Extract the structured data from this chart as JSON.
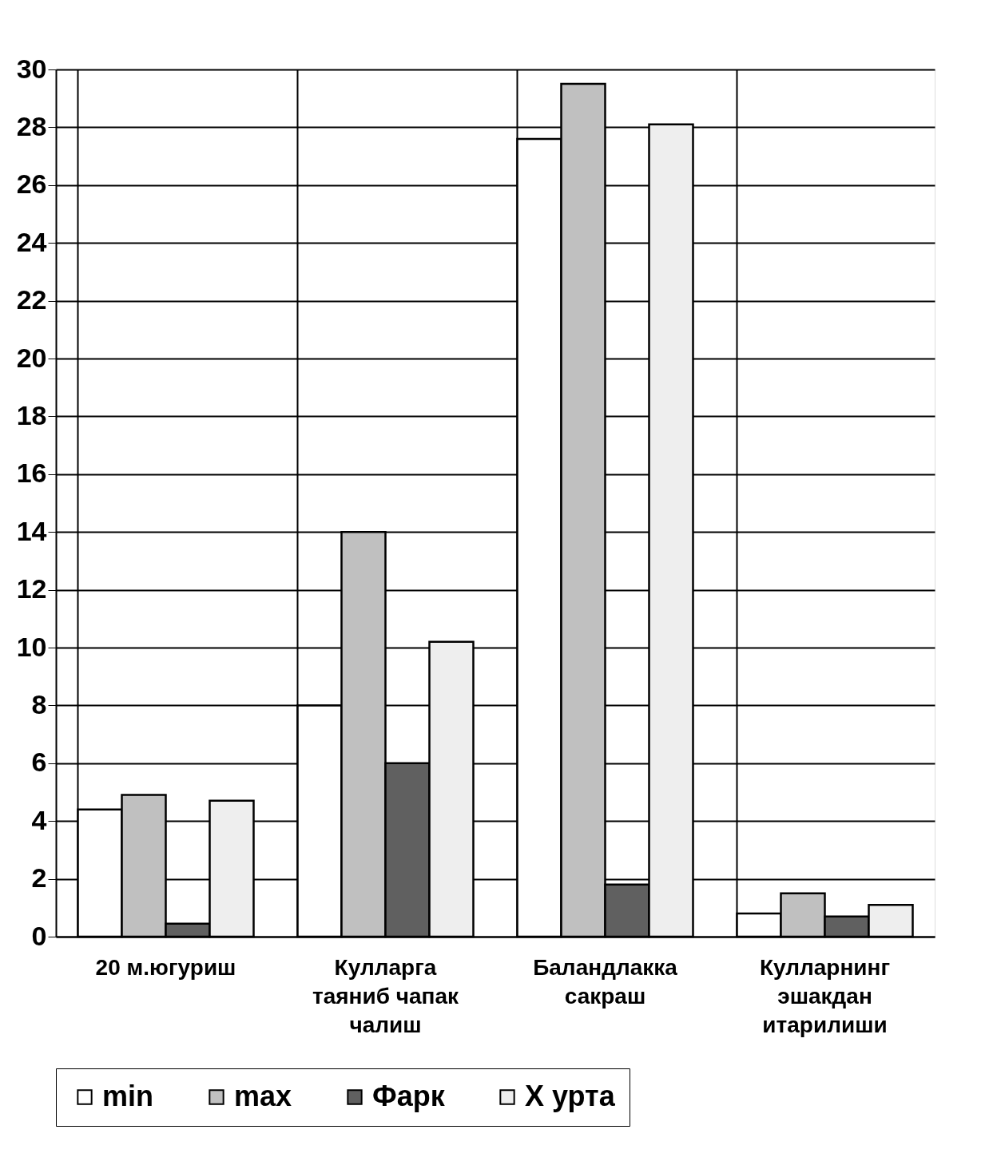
{
  "chart_data": {
    "type": "bar",
    "categories": [
      "20 м.югуриш",
      "Кулларга таяниб чапак чалиш",
      "Баландлакка сакраш",
      "Кулларнинг эшакдан итарилиши"
    ],
    "series": [
      {
        "name": "min",
        "color": "#ffffff",
        "values": [
          4.4,
          8,
          27.6,
          0.8
        ]
      },
      {
        "name": "max",
        "color": "#c0c0c0",
        "values": [
          4.9,
          14,
          29.5,
          1.5
        ]
      },
      {
        "name": "Фарк",
        "color": "#606060",
        "values": [
          0.45,
          6,
          1.8,
          0.7
        ]
      },
      {
        "name": "X урта",
        "color": "#eeeeee",
        "values": [
          4.7,
          10.2,
          28.1,
          1.1
        ]
      }
    ],
    "ylim": [
      0,
      30
    ],
    "yticks": [
      0,
      2,
      4,
      6,
      8,
      10,
      12,
      14,
      16,
      18,
      20,
      22,
      24,
      26,
      28,
      30
    ],
    "grid": true,
    "legend": "bottom"
  }
}
